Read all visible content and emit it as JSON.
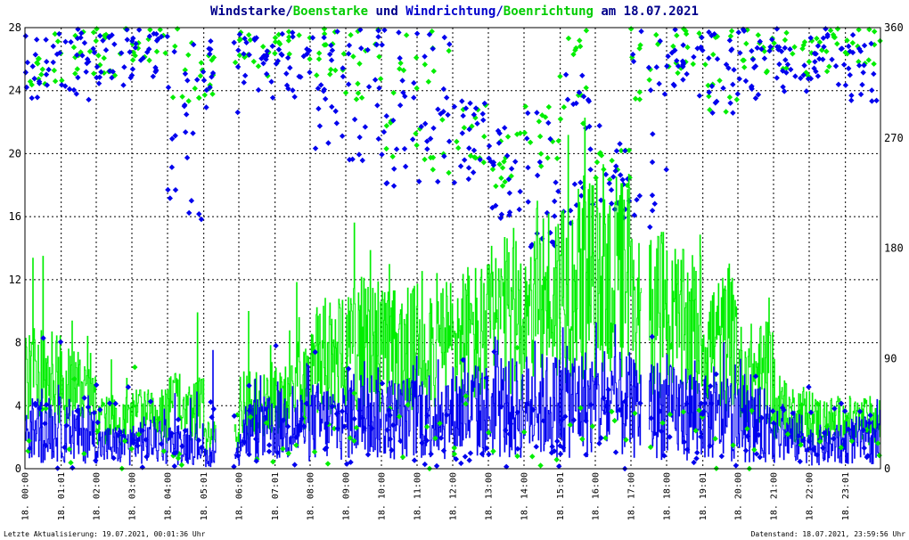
{
  "title": {
    "part1": "Windstarke/",
    "part2": "Boenstarke",
    "part3": " und ",
    "part4": "Windrichtung/",
    "part5": "Boenrichtung",
    "part6": " am 18.07.2021"
  },
  "footer": {
    "left": "Letzte Aktualisierung: 19.07.2021, 00:01:36 Uhr",
    "right": "Datenstand: 18.07.2021, 23:59:56 Uhr"
  },
  "colors": {
    "wind": "#0000ee",
    "gust": "#00ee00",
    "grid": "#000000",
    "title_dark": "#00008b",
    "title_green": "#00cc00",
    "title_blue": "#0000cc"
  },
  "chart_data": {
    "type": "line",
    "y_left": {
      "ticks": [
        "0",
        "4",
        "8",
        "12",
        "16",
        "20",
        "24",
        "28"
      ],
      "range": [
        0,
        28
      ]
    },
    "y_right": {
      "ticks": [
        "0",
        "90",
        "180",
        "270",
        "360"
      ],
      "range": [
        0,
        360
      ]
    },
    "x_range_hours": [
      0,
      24
    ],
    "x_ticks": [
      "18. 00:00",
      "18. 01:01",
      "18. 02:00",
      "18. 03:00",
      "18. 04:00",
      "18. 05:01",
      "18. 06:00",
      "18. 07:01",
      "18. 08:00",
      "18. 09:00",
      "18. 10:00",
      "18. 11:00",
      "18. 12:00",
      "18. 13:00",
      "18. 14:00",
      "18. 15:01",
      "18. 16:00",
      "18. 17:00",
      "18. 18:00",
      "18. 19:01",
      "18. 20:00",
      "18. 21:00",
      "18. 22:00",
      "18. 23:01"
    ],
    "x_tick_hours": [
      0,
      1.017,
      2,
      3,
      4,
      5.017,
      6,
      7.017,
      8,
      9,
      10,
      11,
      12,
      13,
      14,
      15.017,
      16,
      17,
      18,
      19.017,
      20,
      21,
      22,
      23.017
    ],
    "gaps_hours": [
      [
        5.35,
        5.85
      ],
      [
        17.3,
        17.5
      ]
    ],
    "series": [
      {
        "name": "Windstarke",
        "hourly_mean": [
          2.5,
          2.2,
          1.5,
          1.8,
          1.6,
          0.8,
          2.5,
          2.8,
          3.0,
          3.5,
          3.2,
          3.5,
          3.6,
          3.8,
          4.0,
          4.2,
          4.0,
          3.8,
          3.6,
          3.2,
          2.8,
          2.0,
          1.5,
          1.8
        ],
        "hourly_max": [
          7.5,
          5,
          4,
          4,
          5,
          8,
          6,
          7,
          8,
          9,
          8,
          8.5,
          9,
          9.5,
          10,
          10,
          9.5,
          9,
          8.5,
          8,
          7,
          4.5,
          4,
          4.5
        ]
      },
      {
        "name": "Boenstarke",
        "hourly_mean": [
          6,
          5,
          3,
          3.5,
          4,
          2,
          4,
          5,
          7,
          8,
          7.5,
          8,
          8.5,
          9.5,
          11,
          12,
          12,
          10,
          9,
          8,
          6,
          3.5,
          3,
          3
        ],
        "hourly_max": [
          15.5,
          10,
          7,
          5,
          10,
          3,
          10,
          12,
          16.5,
          16,
          13,
          16,
          15,
          18,
          21,
          23.5,
          21,
          15,
          15,
          13,
          13,
          7.5,
          5,
          5
        ]
      },
      {
        "name": "Windrichtung",
        "hourly_band_deg": [
          [
            300,
            360
          ],
          [
            300,
            360
          ],
          [
            310,
            360
          ],
          [
            320,
            360
          ],
          [
            200,
            360
          ],
          [
            290,
            350
          ],
          [
            300,
            360
          ],
          [
            300,
            360
          ],
          [
            260,
            360
          ],
          [
            250,
            360
          ],
          [
            230,
            360
          ],
          [
            230,
            360
          ],
          [
            220,
            300
          ],
          [
            200,
            280
          ],
          [
            180,
            300
          ],
          [
            200,
            330
          ],
          [
            200,
            280
          ],
          [
            190,
            360
          ],
          [
            300,
            360
          ],
          [
            280,
            360
          ],
          [
            300,
            360
          ],
          [
            300,
            360
          ],
          [
            310,
            360
          ],
          [
            300,
            360
          ]
        ]
      },
      {
        "name": "Boenrichtung",
        "hourly_band_deg": [
          [
            310,
            360
          ],
          [
            310,
            360
          ],
          [
            320,
            360
          ],
          [
            330,
            360
          ],
          [
            300,
            360
          ],
          [
            300,
            340
          ],
          [
            320,
            360
          ],
          [
            330,
            360
          ],
          [
            320,
            360
          ],
          [
            300,
            360
          ],
          [
            240,
            360
          ],
          [
            230,
            360
          ],
          [
            240,
            300
          ],
          [
            230,
            280
          ],
          [
            240,
            300
          ],
          [
            280,
            360
          ],
          [
            230,
            260
          ],
          [
            300,
            360
          ],
          [
            320,
            360
          ],
          [
            290,
            360
          ],
          [
            320,
            360
          ],
          [
            320,
            360
          ],
          [
            320,
            360
          ],
          [
            330,
            360
          ]
        ]
      }
    ]
  }
}
